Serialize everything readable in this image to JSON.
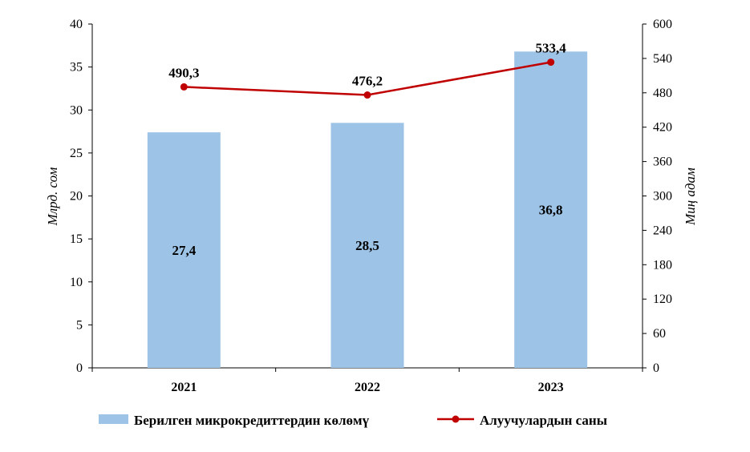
{
  "chart_data": {
    "type": "bar",
    "categories": [
      "2021",
      "2022",
      "2023"
    ],
    "series": [
      {
        "name": "Берилген микрокредиттердин көлөмү",
        "type": "bar",
        "axis": "left",
        "values": [
          27.4,
          28.5,
          36.8
        ],
        "labels": [
          "27,4",
          "28,5",
          "36,8"
        ],
        "color": "#9dc3e6"
      },
      {
        "name": "Алуучулардын саны",
        "type": "line",
        "axis": "right",
        "values": [
          490.3,
          476.2,
          533.4
        ],
        "labels": [
          "490,3",
          "476,2",
          "533,4"
        ],
        "color": "#c00000"
      }
    ],
    "ylabel": "Млрд. сом",
    "y2label": "Миң адам",
    "ylim": [
      0,
      40
    ],
    "y2lim": [
      0,
      600
    ],
    "yticks": [
      "0",
      "5",
      "10",
      "15",
      "20",
      "25",
      "30",
      "35",
      "40"
    ],
    "y2ticks": [
      "0",
      "60",
      "120",
      "180",
      "240",
      "300",
      "360",
      "420",
      "480",
      "540",
      "600"
    ],
    "grid": false,
    "legend_position": "bottom"
  }
}
